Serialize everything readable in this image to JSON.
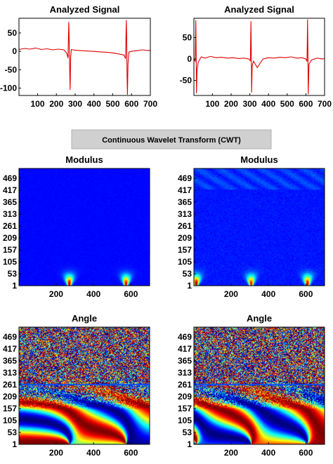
{
  "banner": {
    "label": "Continuous Wavelet Transform (CWT)"
  },
  "chart_data": [
    {
      "type": "line",
      "id": "signal-left",
      "title": "Analyzed Signal",
      "xlim": [
        1,
        700
      ],
      "ylim": [
        -120,
        90
      ],
      "xticks": [
        100,
        200,
        300,
        400,
        500,
        600,
        700
      ],
      "yticks": [
        50,
        0,
        -50,
        -100
      ],
      "series": [
        {
          "color": "#e00000",
          "points": [
            [
              1,
              5
            ],
            [
              30,
              8
            ],
            [
              60,
              6
            ],
            [
              90,
              9
            ],
            [
              120,
              5
            ],
            [
              150,
              7
            ],
            [
              180,
              4
            ],
            [
              210,
              6
            ],
            [
              240,
              4
            ],
            [
              255,
              -5
            ],
            [
              262,
              -18
            ],
            [
              266,
              80
            ],
            [
              268,
              40
            ],
            [
              270,
              -30
            ],
            [
              273,
              -105
            ],
            [
              276,
              -15
            ],
            [
              280,
              5
            ],
            [
              300,
              3
            ],
            [
              330,
              2
            ],
            [
              360,
              1
            ],
            [
              390,
              0
            ],
            [
              420,
              -1
            ],
            [
              450,
              -2
            ],
            [
              480,
              -3
            ],
            [
              510,
              -5
            ],
            [
              540,
              -8
            ],
            [
              560,
              -10
            ],
            [
              568,
              -20
            ],
            [
              572,
              85
            ],
            [
              574,
              40
            ],
            [
              576,
              -60
            ],
            [
              578,
              -118
            ],
            [
              581,
              -35
            ],
            [
              586,
              -2
            ],
            [
              600,
              0
            ],
            [
              630,
              2
            ],
            [
              660,
              4
            ],
            [
              690,
              2
            ],
            [
              700,
              3
            ]
          ]
        }
      ]
    },
    {
      "type": "line",
      "id": "signal-right",
      "title": "Analyzed Signal",
      "xlim": [
        1,
        700
      ],
      "ylim": [
        -85,
        95
      ],
      "xticks": [
        100,
        200,
        300,
        400,
        500,
        600,
        700
      ],
      "yticks": [
        50,
        0,
        -50
      ],
      "series": [
        {
          "color": "#e00000",
          "points": [
            [
              1,
              0
            ],
            [
              8,
              -5
            ],
            [
              11,
              90
            ],
            [
              13,
              20
            ],
            [
              15,
              -80
            ],
            [
              18,
              -25
            ],
            [
              24,
              -8
            ],
            [
              40,
              5
            ],
            [
              60,
              2
            ],
            [
              90,
              6
            ],
            [
              120,
              3
            ],
            [
              150,
              4
            ],
            [
              180,
              2
            ],
            [
              210,
              3
            ],
            [
              240,
              1
            ],
            [
              270,
              2
            ],
            [
              295,
              0
            ],
            [
              303,
              -4
            ],
            [
              306,
              88
            ],
            [
              308,
              20
            ],
            [
              310,
              -78
            ],
            [
              313,
              -15
            ],
            [
              320,
              -5
            ],
            [
              340,
              -20
            ],
            [
              355,
              -10
            ],
            [
              370,
              0
            ],
            [
              400,
              3
            ],
            [
              430,
              2
            ],
            [
              460,
              4
            ],
            [
              490,
              3
            ],
            [
              520,
              5
            ],
            [
              550,
              2
            ],
            [
              580,
              3
            ],
            [
              600,
              0
            ],
            [
              606,
              -6
            ],
            [
              609,
              92
            ],
            [
              611,
              20
            ],
            [
              613,
              -82
            ],
            [
              617,
              -12
            ],
            [
              630,
              -2
            ],
            [
              660,
              2
            ],
            [
              690,
              0
            ],
            [
              700,
              1
            ]
          ]
        }
      ]
    },
    {
      "type": "heatmap",
      "id": "modulus-left",
      "title": "Modulus",
      "xlim": [
        1,
        700
      ],
      "ylim": [
        1,
        512
      ],
      "xticks": [
        200,
        400,
        600
      ],
      "yticks": [
        1,
        53,
        105,
        157,
        209,
        261,
        313,
        365,
        417,
        469
      ],
      "colormap": "jet",
      "hotspots": [
        {
          "x": 270,
          "scale": 1,
          "strength": 1.0
        },
        {
          "x": 575,
          "scale": 1,
          "strength": 0.95
        }
      ]
    },
    {
      "type": "heatmap",
      "id": "modulus-right",
      "title": "Modulus",
      "xlim": [
        1,
        700
      ],
      "ylim": [
        1,
        512
      ],
      "xticks": [
        200,
        400,
        600
      ],
      "yticks": [
        1,
        53,
        105,
        157,
        209,
        261,
        313,
        365,
        417,
        469
      ],
      "colormap": "jet",
      "hotspots": [
        {
          "x": 12,
          "scale": 1,
          "strength": 1.0
        },
        {
          "x": 307,
          "scale": 1,
          "strength": 0.9
        },
        {
          "x": 610,
          "scale": 1,
          "strength": 0.95
        }
      ]
    },
    {
      "type": "heatmap",
      "id": "angle-left",
      "title": "Angle",
      "xlim": [
        1,
        700
      ],
      "ylim": [
        1,
        512
      ],
      "xticks": [
        200,
        400,
        600
      ],
      "yticks": [
        1,
        53,
        105,
        157,
        209,
        261,
        313,
        365,
        417,
        469
      ],
      "colormap": "jet",
      "centers": [
        270,
        575
      ]
    },
    {
      "type": "heatmap",
      "id": "angle-right",
      "title": "Angle",
      "xlim": [
        1,
        700
      ],
      "ylim": [
        1,
        512
      ],
      "xticks": [
        200,
        400,
        600
      ],
      "yticks": [
        1,
        53,
        105,
        157,
        209,
        261,
        313,
        365,
        417,
        469
      ],
      "colormap": "jet",
      "centers": [
        12,
        307,
        610
      ]
    }
  ]
}
